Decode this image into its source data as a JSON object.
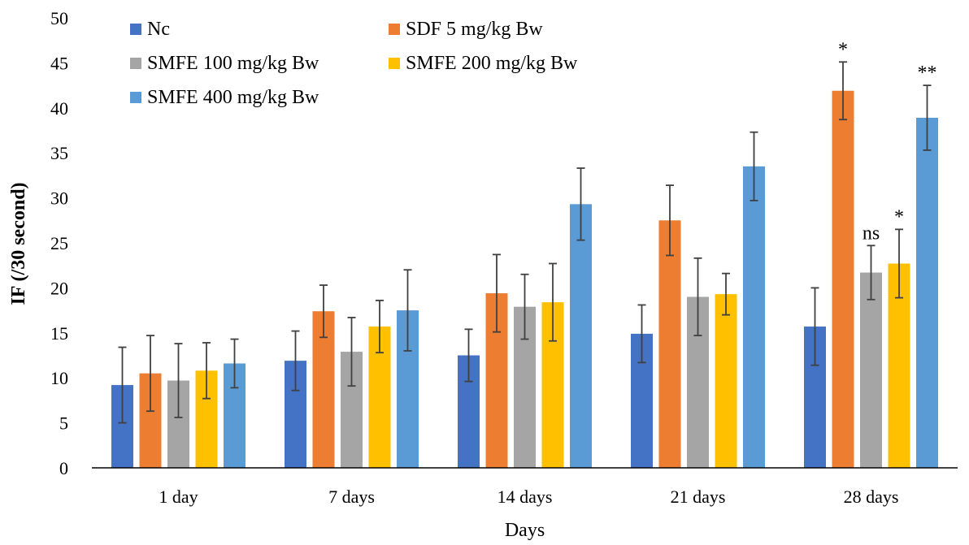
{
  "chart_data": {
    "type": "bar",
    "title": "",
    "xlabel": "Days",
    "ylabel": "IF (/30 second)",
    "ylim": [
      0,
      50
    ],
    "yticks": [
      0,
      5,
      10,
      15,
      20,
      25,
      30,
      35,
      40,
      45,
      50
    ],
    "grid": false,
    "legend_position": "top-left",
    "categories": [
      "1 day",
      "7 days",
      "14 days",
      "21 days",
      "28 days"
    ],
    "series": [
      {
        "name": "Nc",
        "color": "#4472C4",
        "values": [
          9.2,
          11.9,
          12.5,
          14.9,
          15.7
        ],
        "errors": [
          4.2,
          3.3,
          2.9,
          3.2,
          4.3
        ]
      },
      {
        "name": "SDF 5 mg/kg Bw",
        "color": "#ED7D31",
        "values": [
          10.5,
          17.4,
          19.4,
          27.5,
          41.9
        ],
        "errors": [
          4.2,
          2.9,
          4.3,
          3.9,
          3.2
        ]
      },
      {
        "name": "SMFE 100 mg/kg Bw",
        "color": "#A5A5A5",
        "values": [
          9.7,
          12.9,
          17.9,
          19.0,
          21.7
        ],
        "errors": [
          4.1,
          3.8,
          3.6,
          4.3,
          3.0
        ]
      },
      {
        "name": "SMFE 200 mg/kg Bw",
        "color": "#FFC000",
        "values": [
          10.8,
          15.7,
          18.4,
          19.3,
          22.7
        ],
        "errors": [
          3.1,
          2.9,
          4.3,
          2.3,
          3.8
        ]
      },
      {
        "name": "SMFE 400 mg/kg Bw",
        "color": "#5B9BD5",
        "values": [
          11.6,
          17.5,
          29.3,
          33.5,
          38.9
        ],
        "errors": [
          2.7,
          4.5,
          4.0,
          3.8,
          3.6
        ]
      }
    ],
    "annotations": [
      {
        "text": "*",
        "category_index": 4,
        "series_index": 1
      },
      {
        "text": "ns",
        "category_index": 4,
        "series_index": 2
      },
      {
        "text": "*",
        "category_index": 4,
        "series_index": 3
      },
      {
        "text": "**",
        "category_index": 4,
        "series_index": 4
      }
    ]
  }
}
